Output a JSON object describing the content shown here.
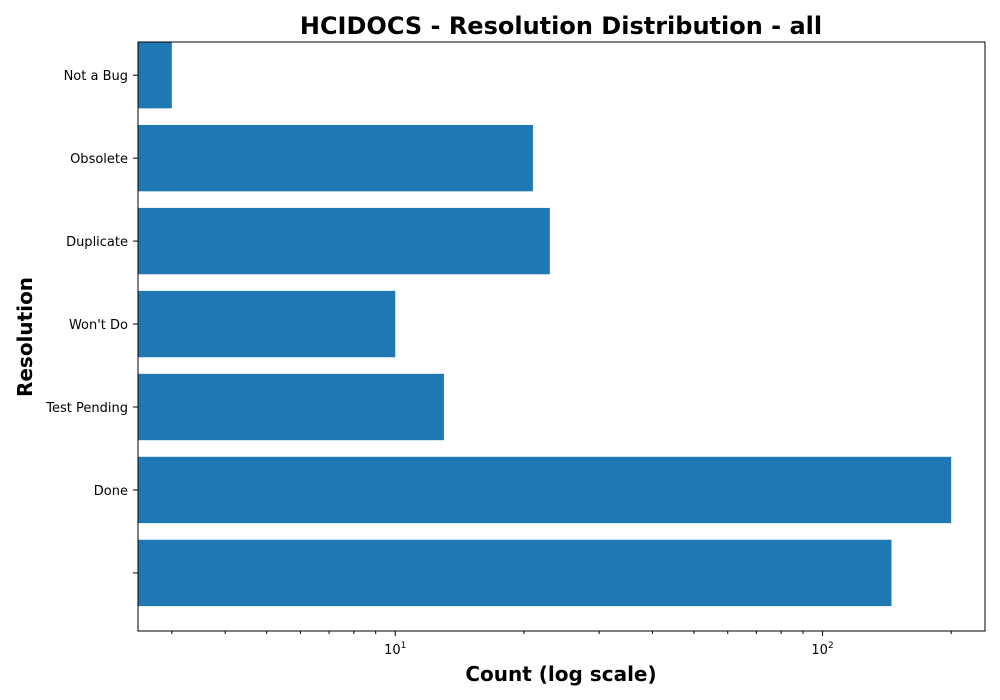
{
  "chart_data": {
    "type": "bar",
    "orientation": "horizontal",
    "title": "HCIDOCS - Resolution Distribution - all",
    "xlabel": "Count (log scale)",
    "ylabel": "Resolution",
    "xscale": "log",
    "xlim": [
      2.5,
      240
    ],
    "grid": false,
    "bar_color": "#1f77b4",
    "categories": [
      "",
      "Done",
      "Test Pending",
      "Won't Do",
      "Duplicate",
      "Obsolete",
      "Not a Bug"
    ],
    "values": [
      145,
      200,
      13,
      10,
      23,
      21,
      3
    ],
    "x_major_ticks": [
      {
        "value": 10,
        "base": "10",
        "exp": "1"
      },
      {
        "value": 100,
        "base": "10",
        "exp": "2"
      }
    ],
    "x_minor_ticks": [
      3,
      4,
      5,
      6,
      7,
      8,
      9,
      20,
      30,
      40,
      50,
      60,
      70,
      80,
      90,
      200
    ]
  }
}
